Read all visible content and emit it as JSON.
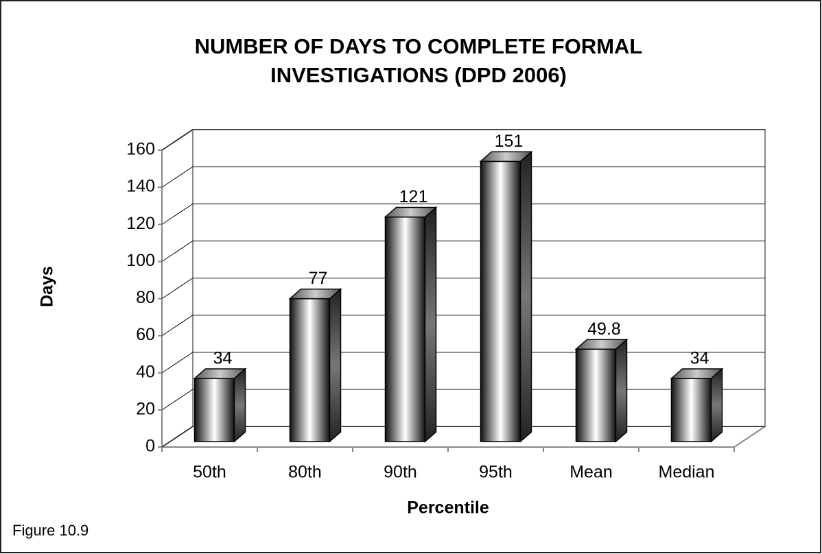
{
  "chart_data": {
    "type": "bar3d",
    "title": [
      "NUMBER OF DAYS TO COMPLETE FORMAL",
      "INVESTIGATIONS (DPD 2006)"
    ],
    "x_label": "Percentile",
    "y_label": "Days",
    "note": "Figure 10.9",
    "categories": [
      "50th",
      "80th",
      "90th",
      "95th",
      "Mean",
      "Median"
    ],
    "values": [
      34,
      77,
      121,
      151,
      49.8,
      34
    ],
    "ylim": [
      0,
      160
    ],
    "yticks": [
      0,
      20,
      40,
      60,
      80,
      100,
      120,
      140,
      160
    ],
    "grid": true
  }
}
